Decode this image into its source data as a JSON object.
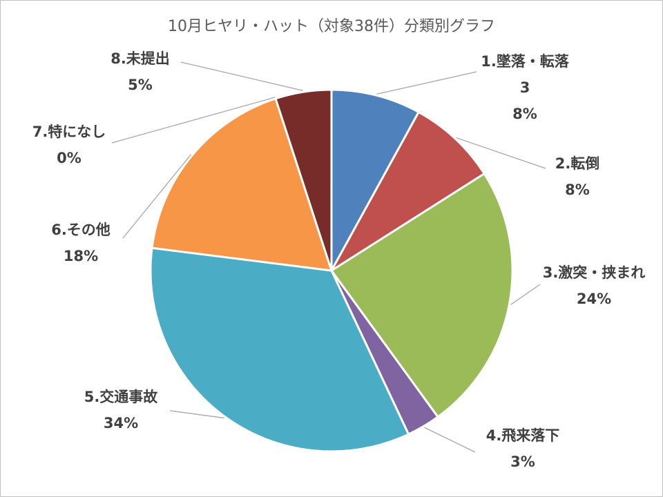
{
  "chart_data": {
    "type": "pie",
    "title": "10月ヒヤリ・ハット（対象38件）分類別グラフ",
    "slices": [
      {
        "label": "1.墜落・転落",
        "count_label": "3",
        "value": 8,
        "percent_label": "8%",
        "color": "#4f81bd"
      },
      {
        "label": "2.転倒",
        "value": 8,
        "percent_label": "8%",
        "color": "#c0504d"
      },
      {
        "label": "3.激突・挟まれ",
        "value": 24,
        "percent_label": "24%",
        "color": "#9bbb59"
      },
      {
        "label": "4.飛来落下",
        "value": 3,
        "percent_label": "3%",
        "color": "#8064a2"
      },
      {
        "label": "5.交通事故",
        "value": 34,
        "percent_label": "34%",
        "color": "#4bacc6"
      },
      {
        "label": "6.その他",
        "value": 18,
        "percent_label": "18%",
        "color": "#f79646"
      },
      {
        "label": "7.特になし",
        "value": 0,
        "percent_label": "0%",
        "color": "#2c4d75"
      },
      {
        "label": "8.未提出",
        "value": 5,
        "percent_label": "5%",
        "color": "#772c2a"
      }
    ],
    "start_angle_deg": 0,
    "direction": "clockwise",
    "leader_line_color": "#a6a6a6"
  }
}
